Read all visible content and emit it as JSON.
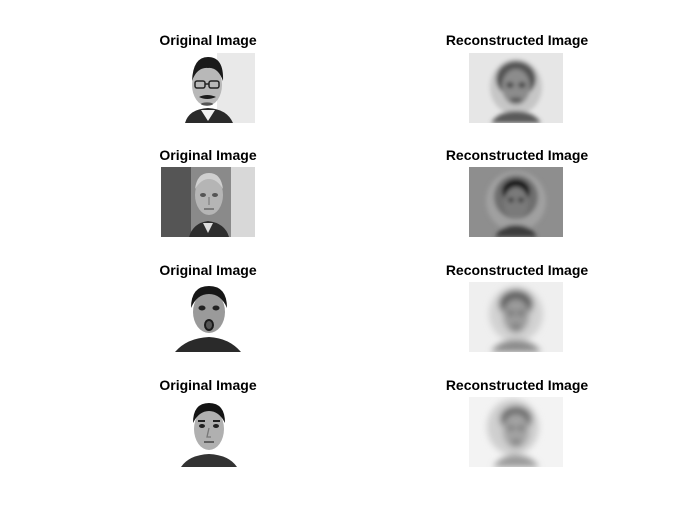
{
  "subplots": [
    {
      "original_title": "Original Image",
      "reconstructed_title": "Reconstructed Image"
    },
    {
      "original_title": "Original Image",
      "reconstructed_title": "Reconstructed Image"
    },
    {
      "original_title": "Original Image",
      "reconstructed_title": "Reconstructed Image"
    },
    {
      "original_title": "Original Image",
      "reconstructed_title": "Reconstructed Image"
    }
  ],
  "colors": {
    "background": "#ffffff",
    "text": "#000000"
  }
}
